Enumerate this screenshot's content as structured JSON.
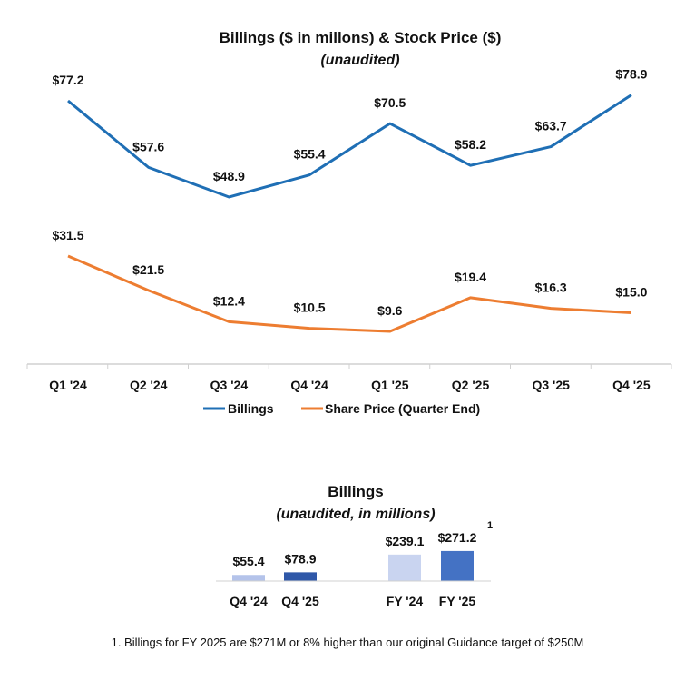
{
  "chart_data": [
    {
      "type": "line",
      "title": "Billings ($ in millons) & Stock Price ($)",
      "subtitle": "(unaudited)",
      "categories": [
        "Q1 '24",
        "Q2 '24",
        "Q3 '24",
        "Q4 '24",
        "Q1 '25",
        "Q2 '25",
        "Q3 '25",
        "Q4 '25"
      ],
      "series": [
        {
          "name": "Billings",
          "color": "#1f6fb5",
          "values": [
            77.2,
            57.6,
            48.9,
            55.4,
            70.5,
            58.2,
            63.7,
            78.9
          ],
          "labels": [
            "$77.2",
            "$57.6",
            "$48.9",
            "$55.4",
            "$70.5",
            "$58.2",
            "$63.7",
            "$78.9"
          ]
        },
        {
          "name": "Share Price (Quarter End)",
          "color": "#ed7d31",
          "values": [
            31.5,
            21.5,
            12.4,
            10.5,
            9.6,
            19.4,
            16.3,
            15.0
          ],
          "labels": [
            "$31.5",
            "$21.5",
            "$12.4",
            "$10.5",
            "$9.6",
            "$19.4",
            "$16.3",
            "$15.0"
          ]
        }
      ],
      "legend": "bottom",
      "grid": false
    },
    {
      "type": "bar",
      "title": "Billings",
      "subtitle": "unaudited, in millions",
      "categories": [
        "Q4 '24",
        "Q4 '25",
        "FY '24",
        "FY '25"
      ],
      "values": [
        55.4,
        78.9,
        239.1,
        271.2
      ],
      "labels": [
        "$55.4",
        "$78.9",
        "$239.1",
        "$271.2"
      ],
      "colors": [
        "#b4c3ea",
        "#2f58a8",
        "#c9d4f0",
        "#4472c4"
      ],
      "annotation": "1"
    }
  ],
  "footnote": "1. Billings for FY 2025 are $271M or 8% higher than our original Guidance target of $250M"
}
